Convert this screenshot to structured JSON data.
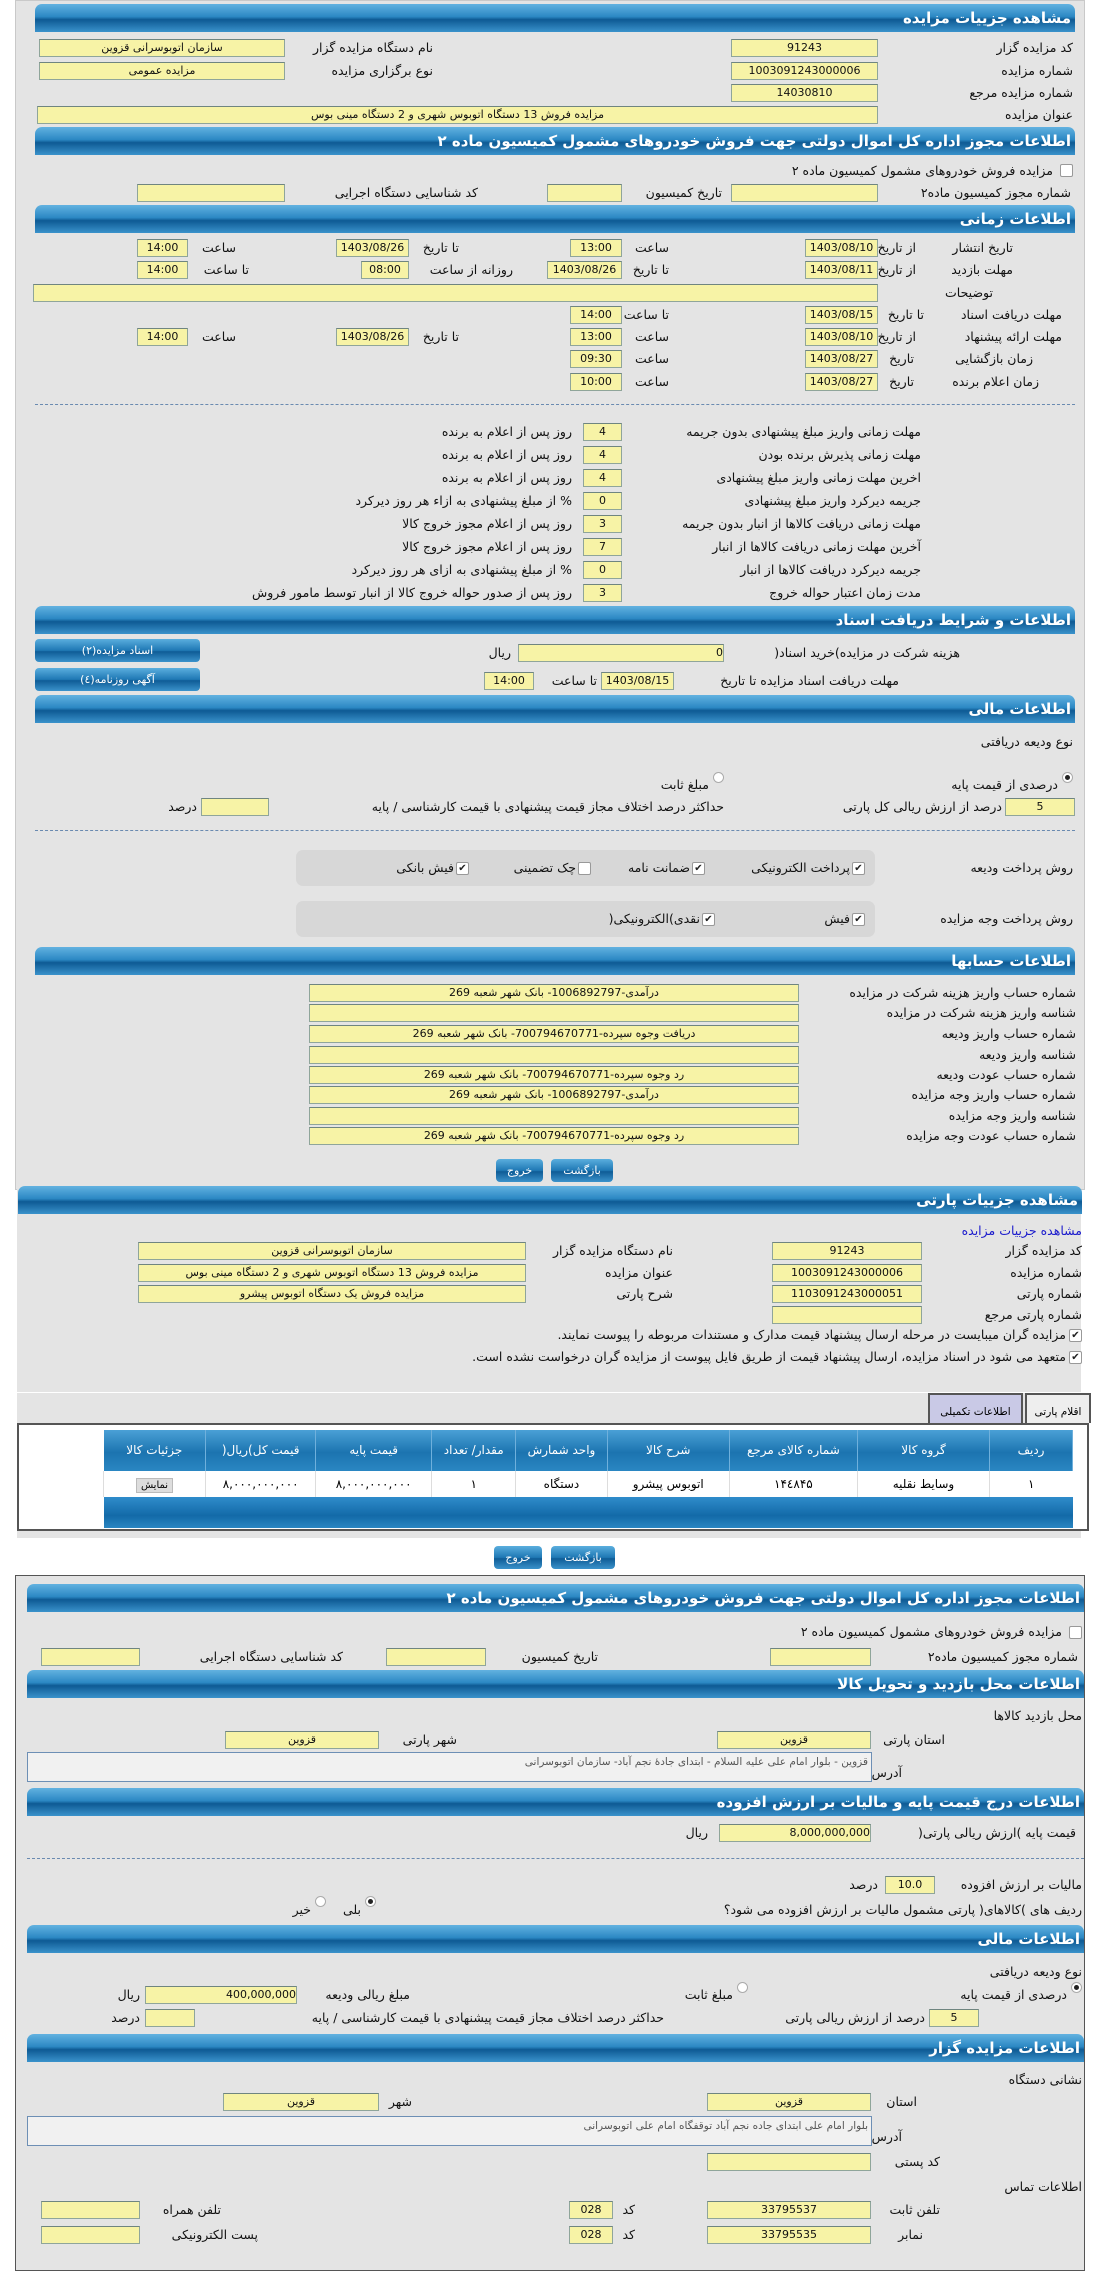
{
  "auction": {
    "title": "مشاهده جزییات مزایده",
    "code_label": "کد مزایده گزار",
    "code": "91243",
    "org_label": "نام دستگاه مزایده گزار",
    "org": "سازمان اتوبوسرانی قزوین",
    "number_label": "شماره مزایده",
    "number": "1003091243000006",
    "type_label": "نوع برگزاری مزایده",
    "type": "مزایده عمومی",
    "ref_label": "شماره مزایده مرجع",
    "ref": "14030810",
    "subject_label": "عنوان مزایده",
    "subject": "مزایده فروش 13 دستگاه اتوبوس شهری و 2 دستگاه مینی بوس"
  },
  "permit": {
    "title": "اطلاعات مجوز اداره کل اموال دولتی جهت فروش خودروهای مشمول کمیسیون ماده ۲",
    "checkbox_label": "مزایده فروش خودروهای مشمول کمیسیون ماده ۲",
    "checked": false,
    "permit_no_label": "شماره مجوز کمیسیون ماده۲",
    "date_label": "تاریخ کمیسیون",
    "exec_code_label": "کد شناسایی دستگاه اجرایی"
  },
  "timing": {
    "title": "اطلاعات زمانی",
    "from_date": "از تاریخ",
    "to_date": "تا تاریخ",
    "date": "تاریخ",
    "time": "ساعت",
    "to_time": "تا ساعت",
    "daily_from": "روزانه از ساعت",
    "publish": {
      "label": "تاریخ انتشار",
      "from": "1403/08/10",
      "from_time": "13:00",
      "to": "1403/08/26",
      "to_time": "14:00"
    },
    "visit": {
      "label": "مهلت بازدید",
      "from": "1403/08/11",
      "to": "1403/08/26",
      "daily_from": "08:00",
      "daily_to": "14:00"
    },
    "desc_label": "توضیحات",
    "desc": "",
    "docs": {
      "label": "مهلت دریافت اسناد",
      "to": "1403/08/15",
      "to_time": "14:00"
    },
    "offer": {
      "label": "مهلت ارائه پیشنهاد",
      "from": "1403/08/10",
      "from_time": "13:00",
      "to": "1403/08/26",
      "to_time": "14:00"
    },
    "opening": {
      "label": "زمان بازگشایی",
      "date": "1403/08/27",
      "time": "09:30"
    },
    "winner": {
      "label": "زمان اعلام برنده",
      "date": "1403/08/27",
      "time": "10:00"
    }
  },
  "rules": [
    {
      "label": "مهلت زمانی واریز مبلغ پیشنهادی بدون جریمه",
      "value": "4",
      "suffix": "روز پس از اعلام به برنده"
    },
    {
      "label": "مهلت زمانی پذیرش برنده بودن",
      "value": "4",
      "suffix": "روز پس از اعلام به برنده"
    },
    {
      "label": "اخرین مهلت زمانی واریز مبلغ پیشنهادی",
      "value": "4",
      "suffix": "روز پس از اعلام به برنده"
    },
    {
      "label": "جریمه دیرکرد واریز مبلغ پیشنهادی",
      "value": "0",
      "suffix": "% از مبلغ پیشنهادی به ازاء هر روز دیرکرد"
    },
    {
      "label": "مهلت زمانی دریافت کالاها از انبار بدون جریمه",
      "value": "3",
      "suffix": "روز پس از اعلام مجوز خروج کالا"
    },
    {
      "label": "آخرین مهلت زمانی دریافت کالاها از انبار",
      "value": "7",
      "suffix": "روز پس از اعلام مجوز خروج کالا"
    },
    {
      "label": "جریمه دیرکرد دریافت کالاها از انبار",
      "value": "0",
      "suffix": "% از مبلغ پیشنهادی به ازای هر روز دیرکرد"
    },
    {
      "label": "مدت زمان اعتبار حواله خروج",
      "value": "3",
      "suffix": "روز پس از صدور حواله خروج کالا از انبار توسط مامور فروش"
    }
  ],
  "documents": {
    "title": "اطلاعات و شرایط دریافت اسناد",
    "fee_label": "هزینه شرکت در مزایده)خرید اسناد(",
    "fee": "0",
    "currency": "ریال",
    "deadline_label": "مهلت دریافت اسناد مزایده تا تاریخ",
    "deadline_date": "1403/08/15",
    "to_time_label": "تا ساعت",
    "deadline_time": "14:00",
    "docs_button": "اسناد مزایده(۲)",
    "ads_button": "آگهی روزنامه(٤)"
  },
  "finance": {
    "title": "اطلاعات مالی",
    "deposit_type_label": "نوع ودیعه دریافتی",
    "percent_option": "درصدی از قیمت پایه",
    "fixed_option": "مبلغ ثابت",
    "selected": "percent",
    "percent": "5",
    "percent_label": "درصد از ارزش ریالی کل پارتی",
    "max_diff_label": "حداکثر درصد اختلاف مجاز قیمت پیشنهادی با قیمت کارشناسی / پایه",
    "max_diff": "",
    "percent_unit": "درصد",
    "deposit_pay_label": "روش پرداخت ودیعه",
    "deposit_methods": [
      {
        "label": "پرداخت الکترونیکی",
        "checked": true
      },
      {
        "label": "ضمانت نامه",
        "checked": true
      },
      {
        "label": "چک تضمینی",
        "checked": false
      },
      {
        "label": "فیش بانکی",
        "checked": true
      }
    ],
    "payment_label": "روش پرداخت وجه مزایده",
    "payment_methods": [
      {
        "label": "فیش",
        "checked": true
      },
      {
        "label": "نقدی)الکترونیکی(",
        "checked": true
      }
    ]
  },
  "accounts": {
    "title": "اطلاعات حسابها",
    "rows": [
      {
        "label": "شماره حساب واریز هزینه شرکت در مزایده",
        "value": "درآمدی-1006892797- بانک شهر شعبه 269"
      },
      {
        "label": "شناسه واریز هزینه شرکت در مزایده",
        "value": ""
      },
      {
        "label": "شماره حساب واریز ودیعه",
        "value": "دریافت وجوه سپرده-700794670771- بانک شهر شعبه 269"
      },
      {
        "label": "شناسه واریز ودیعه",
        "value": ""
      },
      {
        "label": "شماره حساب عودت ودیعه",
        "value": "رد وجوه سپرده-700794670771- بانک شهر شعبه 269"
      },
      {
        "label": "شماره حساب واریز وجه مزایده",
        "value": "درآمدی-1006892797- بانک شهر شعبه 269"
      },
      {
        "label": "شناسه واریز وجه مزایده",
        "value": ""
      },
      {
        "label": "شماره حساب عودت وجه مزایده",
        "value": "رد وجوه سپرده-700794670771- بانک شهر شعبه 269"
      }
    ]
  },
  "buttons": {
    "back": "بازگشت",
    "exit": "خروج"
  },
  "party": {
    "title": "مشاهده جزییات پارتی",
    "link": "مشاهده جزییات مزایده",
    "code_label": "کد مزایده گزار",
    "code": "91243",
    "org_label": "نام دستگاه مزایده گزار",
    "org": "سازمان اتوبوسرانی قزوین",
    "number_label": "شماره مزایده",
    "number": "1003091243000006",
    "subject_label": "عنوان مزایده",
    "subject": "مزایده فروش 13 دستگاه اتوبوس شهری و 2 دستگاه مینی بوس",
    "party_no_label": "شماره پارتی",
    "party_no": "1103091243000051",
    "desc_label": "شرح پارتی",
    "desc": "مزایده فروش یک دستگاه اتوبوس پیشرو",
    "ref_label": "شماره پارتی مرجع",
    "ref": "",
    "check1": "مزایده گران میبایست در مرحله ارسال پیشنهاد قیمت مدارک و مستندات مربوطه را پیوست نمایند.",
    "check2": "متعهد می شود در اسناد مزایده، ارسال پیشنهاد قیمت از طریق فایل پیوست از مزایده گران درخواست نشده است.",
    "tabs": [
      "اقلام پارتی",
      "اطلاعات تکمیلی"
    ],
    "active_tab": "اطلاعات تکمیلی"
  },
  "items": {
    "columns": [
      "ردیف",
      "گروه کالا",
      "شماره کالای مرجع",
      "شرح کالا",
      "واحد شمارش",
      "مقدار/ تعداد",
      "قیمت پایه",
      "قیمت کل)ریال(",
      "جزئیات کالا"
    ],
    "rows": [
      [
        "۱",
        "وسایط نقلیه",
        "۱۴٤۸۴۵",
        "اتوبوس پیشرو",
        "دستگاه",
        "۱",
        "۸,۰۰۰,۰۰۰,۰۰۰",
        "۸,۰۰۰,۰۰۰,۰۰۰",
        "نمایش"
      ]
    ]
  },
  "permit2": {
    "title": "اطلاعات مجوز اداره کل اموال دولتی جهت فروش خودروهای مشمول کمیسیون ماده ۲",
    "checkbox_label": "مزایده فروش خودروهای مشمول کمیسیون ماده ۲",
    "permit_no_label": "شماره مجوز کمیسیون ماده۲",
    "date_label": "تاریخ کمیسیون",
    "exec_code_label": "کد شناسایی دستگاه اجرایی"
  },
  "location": {
    "title": "اطلاعات محل بازدید و تحویل کالا",
    "visit_label": "محل بازدید کالاها",
    "province_label": "استان پارتی",
    "province": "قزوین",
    "city_label": "شهر پارتی",
    "city": "قزوین",
    "address_label": "آدرس",
    "address": "قزوین - بلوار امام علی علیه السلام - ابتدای جادۀ نجم آباد- سازمان اتوبوسرانی"
  },
  "pricing": {
    "title": "اطلاعات درج قیمت پایه و مالیات بر ارزش افزوده",
    "base_label": "قیمت پایه )ارزش ریالی پارتی(",
    "base": "8,000,000,000",
    "currency": "ریال",
    "vat_label": "مالیات بر ارزش افزوده",
    "vat": "10.0",
    "vat_unit": "درصد",
    "vat_q": "ردیف های )کالاهای( پارتی مشمول مالیات بر ارزش افزوده می شود؟",
    "yes": "بلی",
    "no": "خیر",
    "vat_selected": "yes"
  },
  "finance2": {
    "title": "اطلاعات مالی",
    "deposit_type_label": "نوع ودیعه دریافتی",
    "percent_option": "درصدی از قیمت پایه",
    "fixed_option": "مبلغ ثابت",
    "amount_label": "مبلغ ریالی ودیعه",
    "amount": "400,000,000",
    "currency": "ریال",
    "percent": "5",
    "percent_label": "درصد از ارزش ریالی پارتی",
    "max_diff_label": "حداکثر درصد اختلاف مجاز قیمت پیشنهادی با قیمت کارشناسی / پایه",
    "percent_unit": "درصد"
  },
  "seller": {
    "title": "اطلاعات مزایده گزار",
    "addr_heading": "نشانی دستگاه",
    "province_label": "استان",
    "province": "قزوین",
    "city_label": "شهر",
    "city": "قزوین",
    "address_label": "آدرس",
    "address": "بلوار امام علی ابتدای جاده نجم آباد توقفگاه امام علی اتوبوسرانی",
    "postal_label": "کد پستی",
    "postal": "",
    "contact_heading": "اطلاعات تماس",
    "phone_label": "تلفن ثابت",
    "phone": "33795537",
    "code_label": "کد",
    "phone_code": "028",
    "mobile_label": "تلفن همراه",
    "mobile": "",
    "fax_label": "نمابر",
    "fax": "33795535",
    "fax_code": "028",
    "email_label": "پست الکترونیکی",
    "email": ""
  },
  "colors": {
    "header": "#1c74b0",
    "field": "#f7f3a6",
    "panel": "#e4e4e4",
    "link": "#1a1acc",
    "tab_active": "#c9c9e6"
  }
}
